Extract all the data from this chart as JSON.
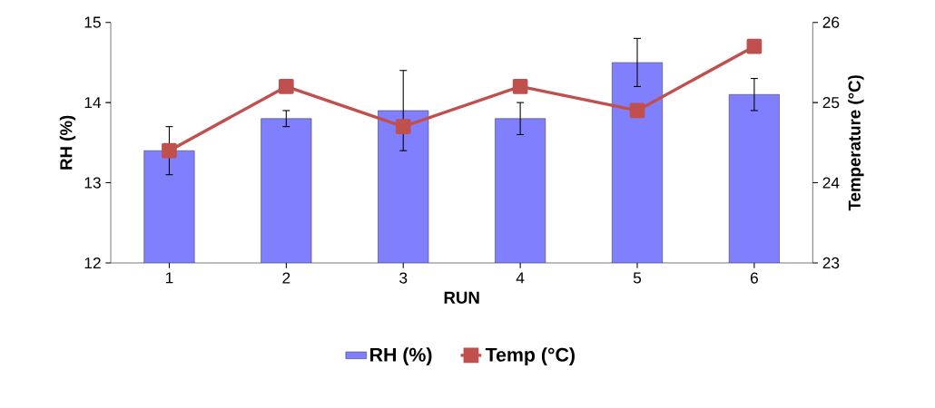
{
  "chart_data": {
    "type": "bar",
    "xlabel": "RUN",
    "ylabel": "RH (%)",
    "y2label": "Temperature (°C)",
    "categories": [
      "1",
      "2",
      "3",
      "4",
      "5",
      "6"
    ],
    "series": [
      {
        "name": "RH (%)",
        "color": "#8080ff",
        "values": [
          13.4,
          13.8,
          13.9,
          13.8,
          14.5,
          14.1
        ],
        "errors": [
          0.3,
          0.1,
          0.5,
          0.2,
          0.3,
          0.2
        ]
      },
      {
        "name": "Temp (°C)",
        "type": "line",
        "axis": "y2",
        "color": "#c0504d",
        "marker": "square",
        "values": [
          24.4,
          25.2,
          24.7,
          25.2,
          24.9,
          25.7
        ]
      }
    ],
    "ylim": [
      12,
      15
    ],
    "yticks": [
      12,
      13,
      14,
      15
    ],
    "y2lim": [
      23,
      26
    ],
    "y2ticks": [
      23,
      24,
      25,
      26
    ],
    "grid": false,
    "legend": "bottom"
  }
}
